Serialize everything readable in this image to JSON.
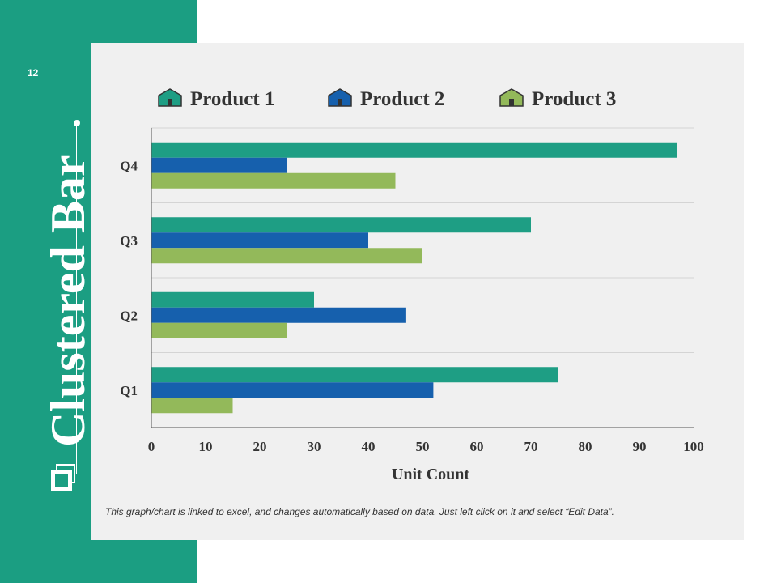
{
  "slide": {
    "number": "12",
    "title": "Clustered Bar",
    "footnote": "This graph/chart is linked to excel, and changes automatically based on data. Just left click on it and select “Edit Data”."
  },
  "colors": {
    "accent": "#1b9e82",
    "panel": "#f0f0f0",
    "product1": "#1e9e84",
    "product2": "#1660ad",
    "product3": "#93b95a"
  },
  "chart_data": {
    "type": "bar",
    "orientation": "horizontal",
    "title": "",
    "categories": [
      "Q1",
      "Q2",
      "Q3",
      "Q4"
    ],
    "series": [
      {
        "name": "Product 1",
        "values": [
          75,
          30,
          70,
          97
        ]
      },
      {
        "name": "Product 2",
        "values": [
          52,
          47,
          40,
          25
        ]
      },
      {
        "name": "Product 3",
        "values": [
          15,
          25,
          50,
          45
        ]
      }
    ],
    "xlabel": "Unit Count",
    "ylabel": "",
    "xlim": [
      0,
      100
    ],
    "xticks": [
      "0",
      "10",
      "20",
      "30",
      "40",
      "50",
      "60",
      "70",
      "80",
      "90",
      "100"
    ],
    "grid": true,
    "legend": "top"
  }
}
